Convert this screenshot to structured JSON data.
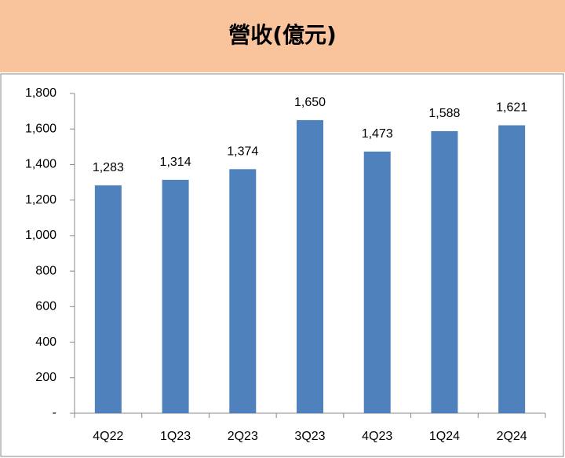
{
  "chart_data": {
    "type": "bar",
    "title": "營收(億元)",
    "categories": [
      "4Q22",
      "1Q23",
      "2Q23",
      "3Q23",
      "4Q23",
      "1Q24",
      "2Q24"
    ],
    "values": [
      1283,
      1314,
      1374,
      1650,
      1473,
      1588,
      1621
    ],
    "value_labels": [
      "1,283",
      "1,314",
      "1,374",
      "1,650",
      "1,473",
      "1,588",
      "1,621"
    ],
    "color": "#4f81bd",
    "ylim": [
      0,
      1800
    ],
    "yticks": [
      {
        "value": 0,
        "label": "-"
      },
      200,
      400,
      600,
      800,
      {
        "value": 1000,
        "label": "1,000"
      },
      {
        "value": 1200,
        "label": "1,200"
      },
      {
        "value": 1400,
        "label": "1,400"
      },
      {
        "value": 1600,
        "label": "1,600"
      },
      {
        "value": 1800,
        "label": "1,800"
      }
    ],
    "grid": false
  }
}
